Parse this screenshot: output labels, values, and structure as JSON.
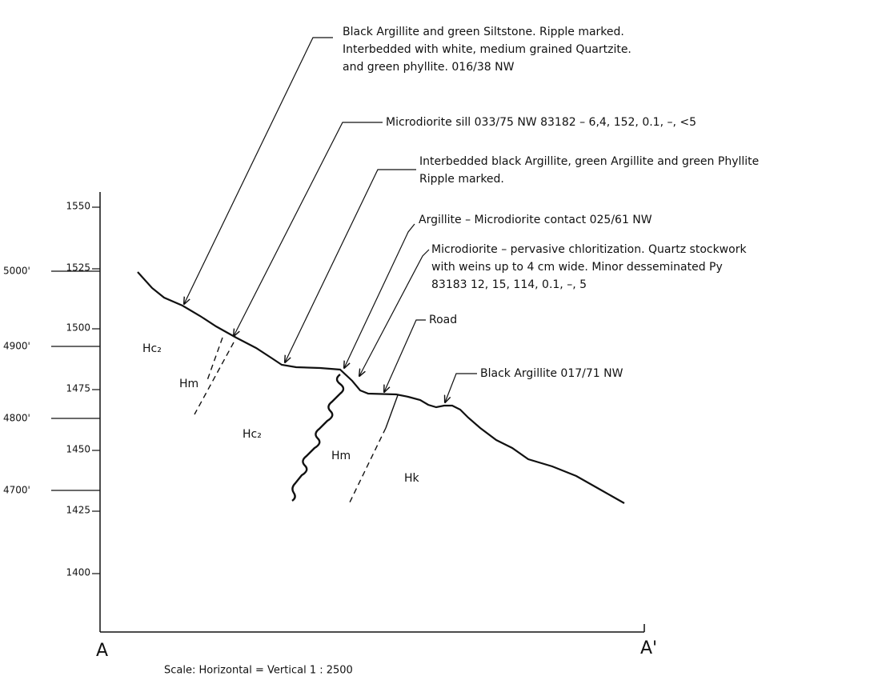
{
  "axis": {
    "meters": [
      "1550",
      "1525",
      "1500",
      "1475",
      "1450",
      "1425",
      "1400"
    ],
    "feet": [
      "5000'",
      "4900'",
      "4800'",
      "4700'"
    ]
  },
  "section": {
    "start": "A",
    "end": "A'",
    "scale": "Scale:   Horizontal = Vertical    1 : 2500"
  },
  "annotations": [
    {
      "lines": [
        "Black Argillite and green Siltstone. Ripple marked.",
        "Interbedded with white, medium grained Quartzite.",
        "and green phyllite.  016/38 NW"
      ]
    },
    {
      "lines": [
        "Microdiorite sill  033/75 NW   83182 – 6,4, 152, 0.1, –, <5"
      ]
    },
    {
      "lines": [
        "Interbedded black Argillite, green Argillite and green Phyllite",
        "Ripple marked."
      ]
    },
    {
      "lines": [
        "Argillite – Microdiorite contact   025/61 NW"
      ]
    },
    {
      "lines": [
        "Microdiorite – pervasive chloritization. Quartz stockwork",
        "with weins up to 4 cm wide. Minor desseminated Py",
        "83183   12, 15, 114, 0.1, –, 5"
      ]
    },
    {
      "lines": [
        "Road"
      ]
    },
    {
      "lines": [
        "Black Argillite  017/71 NW"
      ]
    }
  ],
  "units": [
    "Hc₂",
    "Hm",
    "Hc₂",
    "Hm",
    "Hk"
  ]
}
